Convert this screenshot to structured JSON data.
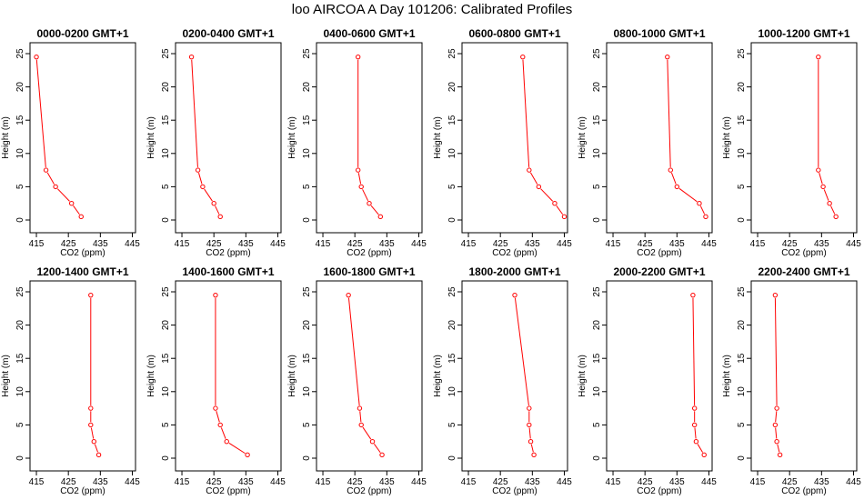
{
  "title": "loo AIRCOA A  Day 101206: Calibrated Profiles",
  "chart_data": {
    "type": "line",
    "xlabel": "CO2 (ppm)",
    "ylabel": "Height (m)",
    "xlim": [
      413,
      446
    ],
    "ylim": [
      0,
      25
    ],
    "xticks": [
      "415",
      "425",
      "435",
      "445"
    ],
    "yticks": [
      "0",
      "5",
      "10",
      "15",
      "20",
      "25"
    ],
    "color": "#ff0000",
    "heights": [
      0.5,
      2.5,
      5,
      7.5,
      24.5
    ],
    "panels": [
      {
        "title": "0000-0200 GMT+1",
        "x": [
          429,
          426,
          421,
          418,
          415
        ]
      },
      {
        "title": "0200-0400 GMT+1",
        "x": [
          427,
          425,
          421.5,
          420,
          418
        ]
      },
      {
        "title": "0400-0600 GMT+1",
        "x": [
          433,
          429.5,
          427,
          426,
          426
        ]
      },
      {
        "title": "0600-0800 GMT+1",
        "x": [
          445,
          442,
          437,
          434,
          432
        ]
      },
      {
        "title": "0800-1000 GMT+1",
        "x": [
          444,
          442,
          435,
          433,
          432
        ]
      },
      {
        "title": "1000-1200 GMT+1",
        "x": [
          439.5,
          437.5,
          435.5,
          434,
          434
        ]
      },
      {
        "title": "1200-1400 GMT+1",
        "x": [
          434.5,
          433,
          432,
          432,
          432
        ]
      },
      {
        "title": "1400-1600 GMT+1",
        "x": [
          435.5,
          429,
          427,
          425.5,
          425.5
        ]
      },
      {
        "title": "1600-1800 GMT+1",
        "x": [
          433.5,
          430.5,
          427,
          426.5,
          423
        ]
      },
      {
        "title": "1800-2000 GMT+1",
        "x": [
          435.5,
          434.5,
          434,
          434,
          429.5
        ]
      },
      {
        "title": "2000-2200 GMT+1",
        "x": [
          443.5,
          441,
          440.5,
          440.5,
          440
        ]
      },
      {
        "title": "2200-2400 GMT+1",
        "x": [
          422,
          421,
          420.5,
          421,
          420.5
        ]
      }
    ]
  }
}
